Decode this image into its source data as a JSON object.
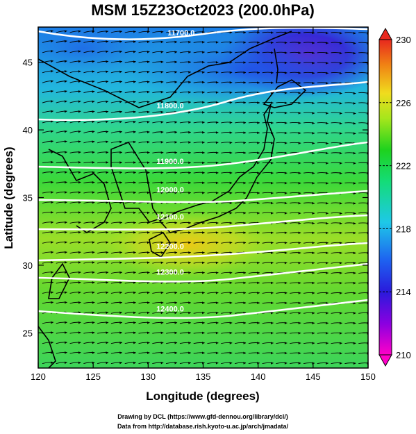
{
  "title": "MSM 15Z23Oct2023 (200.0hPa)",
  "xlabel": "Longitude (degrees)",
  "ylabel": "Latitude  (degrees)",
  "x_ticks": [
    "120",
    "125",
    "130",
    "135",
    "140",
    "145",
    "150"
  ],
  "y_ticks": [
    "25",
    "30",
    "35",
    "40",
    "45"
  ],
  "colorbar_ticks": [
    "230",
    "226",
    "222",
    "218",
    "214",
    "210"
  ],
  "credits": [
    "Drawing by DCL (https://www.gfd-dennou.org/library/dcl/)",
    "Data from http://database.rish.kyoto-u.ac.jp/arch/jmadata/"
  ],
  "chart_data": {
    "type": "heatmap",
    "xlim": [
      120,
      150
    ],
    "ylim": [
      22.4,
      47.6
    ],
    "colorbar_range": [
      210,
      230
    ],
    "contours": [
      {
        "value": 11700,
        "label": "11700.0",
        "lon": 133,
        "lat": 47.2
      },
      {
        "value": 11800,
        "label": "11800.0",
        "lon": 132,
        "lat": 41.8
      },
      {
        "value": 11900,
        "label": "11900.0",
        "lon": 132,
        "lat": 37.7
      },
      {
        "value": 12000,
        "label": "12000.0",
        "lon": 132,
        "lat": 35.6
      },
      {
        "value": 12100,
        "label": "12100.0",
        "lon": 132,
        "lat": 33.6
      },
      {
        "value": 12200,
        "label": "12200.0",
        "lon": 132,
        "lat": 31.4
      },
      {
        "value": 12300,
        "label": "12300.0",
        "lon": 132,
        "lat": 29.5
      },
      {
        "value": 12400,
        "label": "12400.0",
        "lon": 132,
        "lat": 26.8
      }
    ]
  },
  "colors": {
    "contour": "#ffffff",
    "coast": "#000000",
    "vector": "#000000"
  }
}
